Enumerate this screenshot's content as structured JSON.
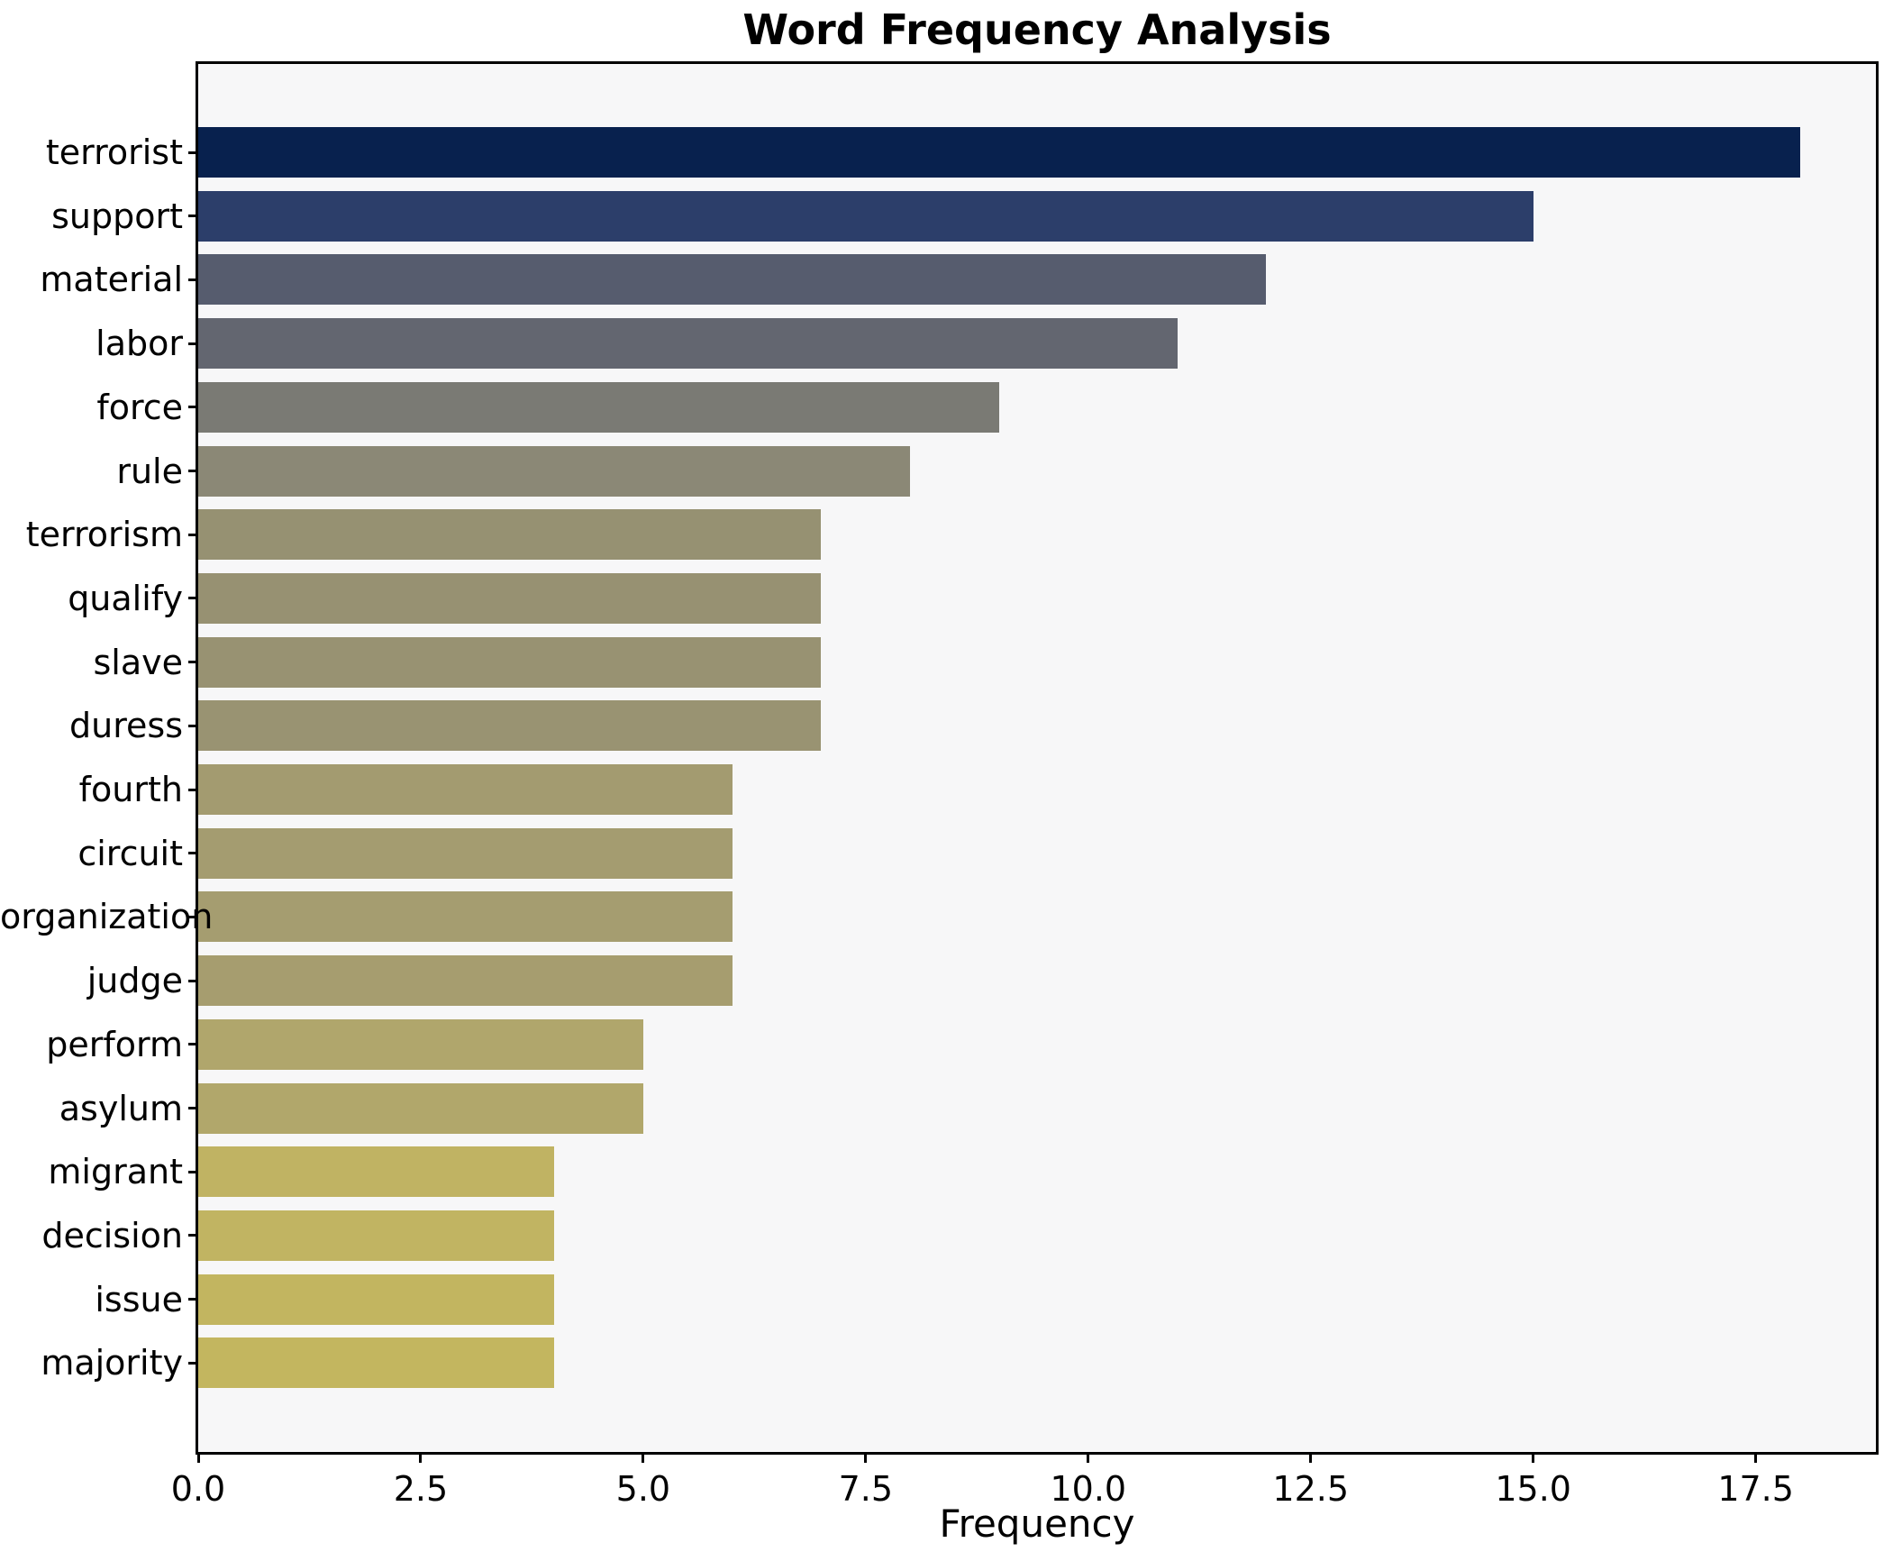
{
  "chart_data": {
    "type": "bar",
    "orientation": "horizontal",
    "title": "Word Frequency Analysis",
    "xlabel": "Frequency",
    "ylabel": "",
    "categories": [
      "terrorist",
      "support",
      "material",
      "labor",
      "force",
      "rule",
      "terrorism",
      "qualify",
      "slave",
      "duress",
      "fourth",
      "circuit",
      "organization",
      "judge",
      "perform",
      "asylum",
      "migrant",
      "decision",
      "issue",
      "majority"
    ],
    "values": [
      18,
      15,
      12,
      11,
      9,
      8,
      7,
      7,
      7,
      7,
      6,
      6,
      6,
      6,
      5,
      5,
      4,
      4,
      4,
      4
    ],
    "xlim": [
      0,
      18.85
    ],
    "x_ticks": [
      0,
      2.5,
      5,
      7.5,
      10,
      12.5,
      15,
      17.5
    ],
    "x_tick_labels": [
      "0.0",
      "2.5",
      "5.0",
      "7.5",
      "10.0",
      "12.5",
      "15.0",
      "17.5"
    ],
    "grid": false,
    "legend": null,
    "colormap": "cividis",
    "bar_colors": [
      "#08214e",
      "#2c3e6a",
      "#565c6e",
      "#636670",
      "#7a7a74",
      "#8b8876",
      "#969172",
      "#979172",
      "#989272",
      "#999372",
      "#a39b70",
      "#a49c70",
      "#a59d70",
      "#a69d6f",
      "#b0a66c",
      "#b1a76b",
      "#c0b363",
      "#c1b462",
      "#c2b560",
      "#c3b65f"
    ],
    "colors": {
      "axes_background": "#f7f7f8",
      "figure_background": "#ffffff",
      "spine": "#000000",
      "text": "#000000"
    }
  }
}
